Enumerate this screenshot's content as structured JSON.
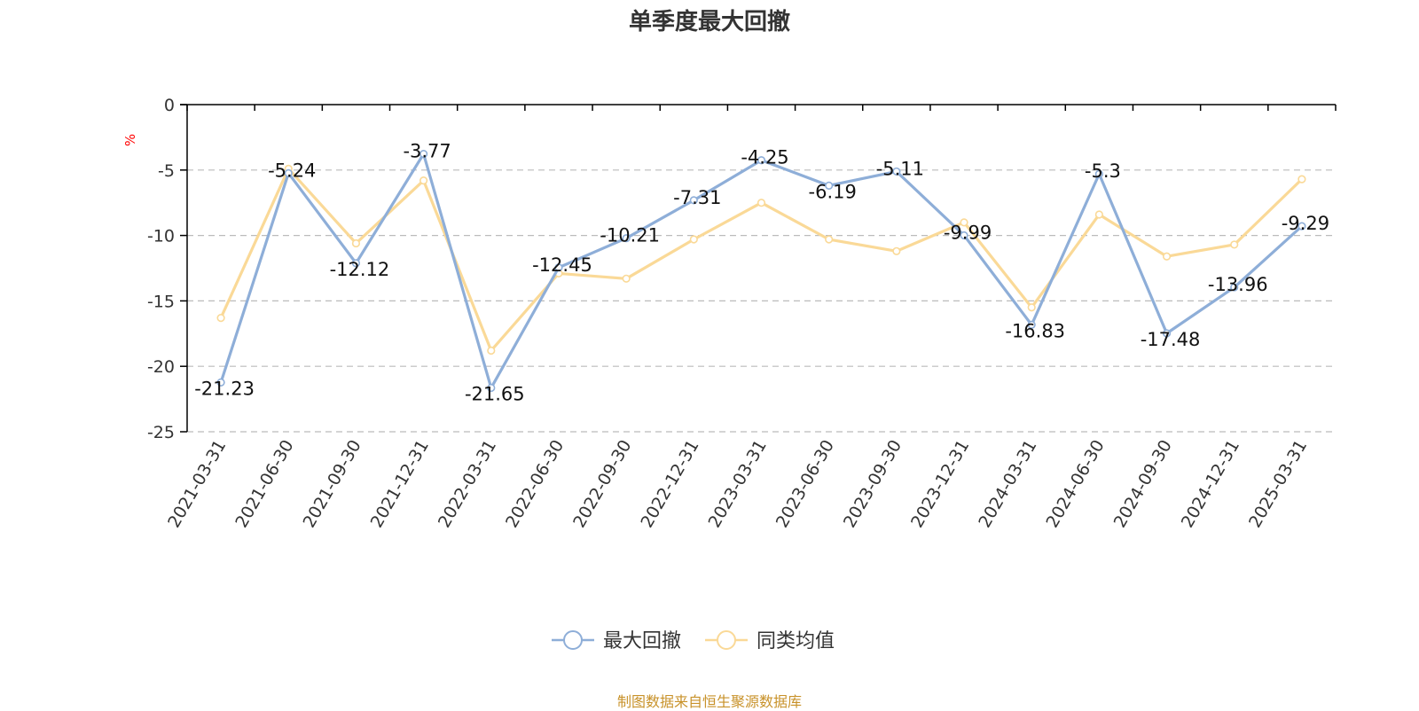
{
  "title": "单季度最大回撤",
  "source_text": "制图数据来自恒生聚源数据库",
  "colors": {
    "series_drawdown": "#8eaed8",
    "series_peer": "#fad997",
    "unit_label": "#ff0000",
    "source_text": "#c8922a",
    "grid": "#bbbbbb",
    "axis": "#000000"
  },
  "chart_data": {
    "type": "line",
    "title": "单季度最大回撤",
    "ylabel": "%",
    "xlabel": "",
    "ylim": [
      -25,
      0
    ],
    "yticks": [
      0,
      -5,
      -10,
      -15,
      -20,
      -25
    ],
    "grid": "horizontal-dashed",
    "legend_position": "bottom-center",
    "categories": [
      "2021-03-31",
      "2021-06-30",
      "2021-09-30",
      "2021-12-31",
      "2022-03-31",
      "2022-06-30",
      "2022-09-30",
      "2022-12-31",
      "2023-03-31",
      "2023-06-30",
      "2023-09-30",
      "2023-12-31",
      "2024-03-31",
      "2024-06-30",
      "2024-09-30",
      "2024-12-31",
      "2025-03-31"
    ],
    "series": [
      {
        "name": "最大回撤",
        "values": [
          -21.23,
          -5.24,
          -12.12,
          -3.77,
          -21.65,
          -12.45,
          -10.21,
          -7.31,
          -4.25,
          -6.19,
          -5.11,
          -9.99,
          -16.83,
          -5.3,
          -17.48,
          -13.96,
          -9.29
        ],
        "data_labels": [
          "-21.23",
          "-5.24",
          "-12.12",
          "-3.77",
          "-21.65",
          "-12.45",
          "-10.21",
          "-7.31",
          "-4.25",
          "-6.19",
          "-5.11",
          "-9.99",
          "-16.83",
          "-5.3",
          "-17.48",
          "-13.96",
          "-9.29"
        ],
        "labels_shown": true
      },
      {
        "name": "同类均值",
        "values": [
          -16.3,
          -4.9,
          -10.6,
          -5.8,
          -18.8,
          -12.9,
          -13.3,
          -10.3,
          -7.5,
          -10.3,
          -11.2,
          -9.0,
          -15.5,
          -8.4,
          -11.6,
          -10.7,
          -5.7
        ],
        "labels_shown": false
      }
    ]
  }
}
